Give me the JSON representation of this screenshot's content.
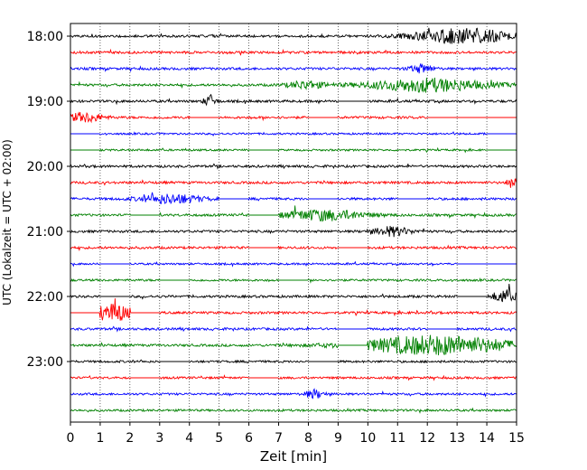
{
  "chart_data": {
    "type": "line",
    "title": "",
    "xlabel": "Zeit  [min]",
    "ylabel": "UTC (Lokalzeit = UTC + 02:00)",
    "xlim": [
      0,
      15
    ],
    "x_ticks": [
      0,
      1,
      2,
      3,
      4,
      5,
      6,
      7,
      8,
      9,
      10,
      11,
      12,
      13,
      14,
      15
    ],
    "x_tick_labels": [
      "0",
      "1",
      "2",
      "3",
      "4",
      "5",
      "6",
      "7",
      "8",
      "9",
      "10",
      "11",
      "12",
      "13",
      "14",
      "15"
    ],
    "y_ticks": [
      "18:00",
      "19:00",
      "20:00",
      "21:00",
      "22:00",
      "23:00"
    ],
    "grid": "vertical dotted",
    "row_colors": [
      "#000000",
      "#ff0000",
      "#0000ff",
      "#008000"
    ],
    "series": [
      {
        "start": "18:00",
        "amplitude": 1.0,
        "gaps": [],
        "bursts": [
          [
            13.2,
            1.6,
            2.6
          ]
        ]
      },
      {
        "start": "18:15",
        "amplitude": 1.0,
        "gaps": [],
        "bursts": []
      },
      {
        "start": "18:30",
        "amplitude": 1.0,
        "gaps": [],
        "bursts": [
          [
            11.8,
            0.4,
            1.4
          ]
        ]
      },
      {
        "start": "18:45",
        "amplitude": 1.0,
        "gaps": [],
        "bursts": [
          [
            12.0,
            2.0,
            2.2
          ],
          [
            7.9,
            0.6,
            1.3
          ]
        ]
      },
      {
        "start": "19:00",
        "amplitude": 1.0,
        "gaps": [
          [
            9.0,
            10.0
          ]
        ],
        "bursts": [
          [
            4.7,
            0.2,
            2.0
          ]
        ]
      },
      {
        "start": "19:15",
        "amplitude": 1.0,
        "gaps": [
          [
            4.0,
            5.0
          ],
          [
            8.0,
            9.0
          ],
          [
            12.0,
            15.0
          ]
        ],
        "bursts": [
          [
            0.5,
            0.6,
            1.6
          ]
        ]
      },
      {
        "start": "19:30",
        "amplitude": 0.8,
        "gaps": [
          [
            0.0,
            1.0
          ],
          [
            14.0,
            15.0
          ]
        ],
        "bursts": []
      },
      {
        "start": "19:45",
        "amplitude": 0.8,
        "gaps": [
          [
            0.0,
            1.0
          ],
          [
            6.0,
            7.0
          ],
          [
            14.0,
            15.0
          ]
        ],
        "bursts": []
      },
      {
        "start": "20:00",
        "amplitude": 1.0,
        "gaps": [],
        "bursts": []
      },
      {
        "start": "20:15",
        "amplitude": 1.0,
        "gaps": [],
        "bursts": [
          [
            14.9,
            0.2,
            2.0
          ]
        ]
      },
      {
        "start": "20:30",
        "amplitude": 1.0,
        "gaps": [
          [
            5.0,
            6.0
          ],
          [
            8.0,
            9.0
          ],
          [
            11.0,
            12.0
          ]
        ],
        "bursts": [
          [
            3.4,
            1.0,
            1.6
          ]
        ]
      },
      {
        "start": "20:45",
        "amplitude": 1.0,
        "gaps": [
          [
            2.0,
            3.0
          ],
          [
            6.0,
            7.0
          ]
        ],
        "bursts": [
          [
            8.5,
            1.4,
            1.8
          ]
        ]
      },
      {
        "start": "21:00",
        "amplitude": 1.0,
        "gaps": [],
        "bursts": [
          [
            10.8,
            0.6,
            1.6
          ]
        ]
      },
      {
        "start": "21:15",
        "amplitude": 1.0,
        "gaps": [
          [
            6.0,
            7.0
          ],
          [
            9.0,
            10.0
          ]
        ],
        "bursts": []
      },
      {
        "start": "21:30",
        "amplitude": 0.8,
        "gaps": [
          [
            1.0,
            2.0
          ],
          [
            13.0,
            15.0
          ]
        ],
        "bursts": []
      },
      {
        "start": "21:45",
        "amplitude": 0.9,
        "gaps": [
          [
            3.0,
            4.0
          ],
          [
            7.0,
            8.0
          ]
        ],
        "bursts": []
      },
      {
        "start": "22:00",
        "amplitude": 1.0,
        "gaps": [
          [
            1.0,
            2.0
          ],
          [
            13.0,
            14.0
          ]
        ],
        "bursts": [
          [
            14.6,
            0.4,
            2.2
          ]
        ]
      },
      {
        "start": "22:15",
        "amplitude": 1.0,
        "gaps": [
          [
            0.0,
            1.0
          ],
          [
            2.0,
            3.0
          ]
        ],
        "bursts": [
          [
            1.4,
            0.7,
            3.0
          ]
        ]
      },
      {
        "start": "22:30",
        "amplitude": 1.0,
        "gaps": [
          [
            9.0,
            10.0
          ],
          [
            12.0,
            13.0
          ]
        ],
        "bursts": []
      },
      {
        "start": "22:45",
        "amplitude": 1.0,
        "gaps": [
          [
            9.0,
            10.0
          ]
        ],
        "bursts": [
          [
            12.3,
            2.6,
            3.3
          ]
        ]
      },
      {
        "start": "23:00",
        "amplitude": 0.9,
        "gaps": [
          [
            3.0,
            4.0
          ],
          [
            8.0,
            9.0
          ]
        ],
        "bursts": []
      },
      {
        "start": "23:15",
        "amplitude": 0.9,
        "gaps": [
          [
            2.0,
            3.0
          ],
          [
            6.0,
            7.0
          ]
        ],
        "bursts": []
      },
      {
        "start": "23:30",
        "amplitude": 0.9,
        "gaps": [],
        "bursts": [
          [
            8.2,
            0.3,
            1.5
          ]
        ]
      },
      {
        "start": "23:45",
        "amplitude": 0.9,
        "gaps": [],
        "bursts": []
      }
    ]
  }
}
